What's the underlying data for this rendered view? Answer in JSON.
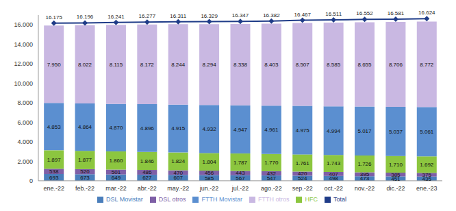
{
  "chart_data": {
    "type": "bar",
    "stacked": true,
    "data_labels": true,
    "legend": "bottom",
    "grid": false,
    "categories": [
      "ene.-22",
      "feb.-22",
      "mar.-22",
      "abr.-22",
      "may.-22",
      "jun.-22",
      "jul.-22",
      "ago.-22",
      "sep.-22",
      "oct.-22",
      "nov.-22",
      "dic.-22",
      "ene.-23"
    ],
    "ylim": [
      0,
      17000
    ],
    "yticks": [
      0,
      {
        "value": 2000,
        "label": "2.000"
      },
      {
        "value": 4000,
        "label": "4.000"
      },
      {
        "value": 6000,
        "label": "6.000"
      },
      {
        "value": 8000,
        "label": "8.000"
      },
      {
        "value": 10000,
        "label": "10.000"
      },
      {
        "value": 12000,
        "label": "12.000"
      },
      {
        "value": 14000,
        "label": "14.000"
      },
      {
        "value": 16000,
        "label": "16.000"
      }
    ],
    "series": [
      {
        "name": "DSL Movistar",
        "color": "#4A7EBB",
        "values": [
          693,
          673,
          649,
          627,
          607,
          585,
          567,
          547,
          524,
          498,
          473,
          451,
          435
        ]
      },
      {
        "name": "DSL otros",
        "color": "#7E5FA6",
        "values": [
          538,
          520,
          501,
          486,
          470,
          456,
          443,
          432,
          420,
          407,
          395,
          385,
          375
        ]
      },
      {
        "name": "HFC",
        "color": "#8CC63F",
        "values": [
          1897,
          1877,
          1860,
          1846,
          1824,
          1804,
          1787,
          1770,
          1761,
          1743,
          1726,
          1710,
          1692
        ],
        "value_labels": [
          "1.897",
          "1.877",
          "1.860",
          "1.846",
          "1.824",
          "1.804",
          "1.787",
          "1.770",
          "1.761",
          "1.743",
          "1.726",
          "1.710",
          "1.692"
        ]
      },
      {
        "name": "FTTH Movistar",
        "color": "#5B8FD0",
        "values": [
          4853,
          4864,
          4870,
          4896,
          4915,
          4932,
          4947,
          4961,
          4975,
          4994,
          5017,
          5037,
          5061
        ],
        "value_labels": [
          "4.853",
          "4.864",
          "4.870",
          "4.896",
          "4.915",
          "4.932",
          "4.947",
          "4.961",
          "4.975",
          "4.994",
          "5.017",
          "5.037",
          "5.061"
        ]
      },
      {
        "name": "FTTH otros",
        "color": "#C9B8E2",
        "values": [
          7950,
          8022,
          8115,
          8172,
          8244,
          8294,
          8338,
          8403,
          8507,
          8585,
          8655,
          8706,
          8772
        ],
        "value_labels": [
          "7.950",
          "8.022",
          "8.115",
          "8.172",
          "8.244",
          "8.294",
          "8.338",
          "8.403",
          "8.507",
          "8.585",
          "8.655",
          "8.706",
          "8.772"
        ]
      },
      {
        "name": "Total",
        "type": "line",
        "marker": "diamond",
        "color": "#1F3C88",
        "values": [
          16175,
          16196,
          16241,
          16277,
          16311,
          16329,
          16347,
          16382,
          16467,
          16511,
          16552,
          16581,
          16624
        ],
        "value_labels": [
          "16.175",
          "16.196",
          "16.241",
          "16.277",
          "16.311",
          "16.329",
          "16.347",
          "16.382",
          "16.467",
          "16.511",
          "16.552",
          "16.581",
          "16.624"
        ]
      }
    ]
  }
}
